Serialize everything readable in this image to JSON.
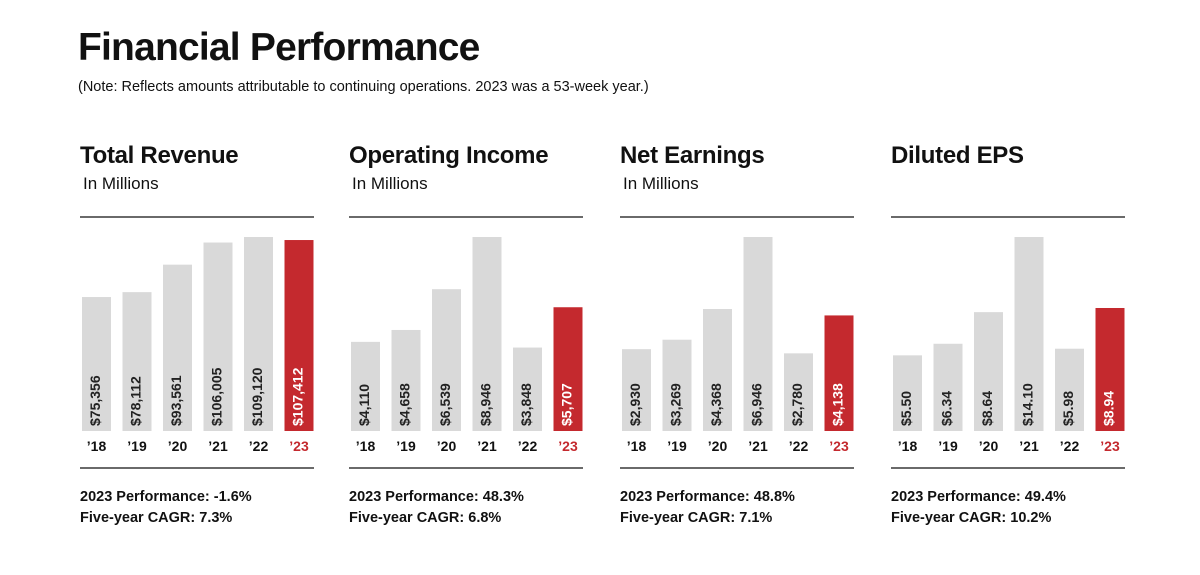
{
  "header": {
    "title": "Financial Performance",
    "note": "(Note: Reflects amounts attributable to continuing operations. 2023 was a 53-week year.)"
  },
  "colors": {
    "bar": "#d9d9d9",
    "highlight": "#c4292e",
    "text": "#111111",
    "label_light": "#222222"
  },
  "chart_data": [
    {
      "type": "bar",
      "title": "Total Revenue",
      "subtitle": "In Millions",
      "categories": [
        "’18",
        "’19",
        "’20",
        "’21",
        "’22",
        "’23"
      ],
      "values": [
        75356,
        78112,
        93561,
        106005,
        109120,
        107412
      ],
      "labels": [
        "$75,356",
        "$78,112",
        "$93,561",
        "$106,005",
        "$109,120",
        "$107,412"
      ],
      "highlight_index": 5,
      "ylim": [
        0,
        109120
      ],
      "performance": "2023 Performance: -1.6%",
      "cagr": "Five-year CAGR: 7.3%"
    },
    {
      "type": "bar",
      "title": "Operating Income",
      "subtitle": "In Millions",
      "categories": [
        "’18",
        "’19",
        "’20",
        "’21",
        "’22",
        "’23"
      ],
      "values": [
        4110,
        4658,
        6539,
        8946,
        3848,
        5707
      ],
      "labels": [
        "$4,110",
        "$4,658",
        "$6,539",
        "$8,946",
        "$3,848",
        "$5,707"
      ],
      "highlight_index": 5,
      "ylim": [
        0,
        8946
      ],
      "performance": "2023 Performance: 48.3%",
      "cagr": "Five-year CAGR: 6.8%"
    },
    {
      "type": "bar",
      "title": "Net Earnings",
      "subtitle": "In Millions",
      "categories": [
        "’18",
        "’19",
        "’20",
        "’21",
        "’22",
        "’23"
      ],
      "values": [
        2930,
        3269,
        4368,
        6946,
        2780,
        4138
      ],
      "labels": [
        "$2,930",
        "$3,269",
        "$4,368",
        "$6,946",
        "$2,780",
        "$4,138"
      ],
      "highlight_index": 5,
      "ylim": [
        0,
        6946
      ],
      "performance": "2023 Performance: 48.8%",
      "cagr": "Five-year CAGR: 7.1%"
    },
    {
      "type": "bar",
      "title": "Diluted EPS",
      "subtitle": "",
      "categories": [
        "’18",
        "’19",
        "’20",
        "’21",
        "’22",
        "’23"
      ],
      "values": [
        5.5,
        6.34,
        8.64,
        14.1,
        5.98,
        8.94
      ],
      "labels": [
        "$5.50",
        "$6.34",
        "$8.64",
        "$14.10",
        "$5.98",
        "$8.94"
      ],
      "highlight_index": 5,
      "ylim": [
        0,
        14.1
      ],
      "performance": "2023 Performance: 49.4%",
      "cagr": "Five-year CAGR: 10.2%"
    }
  ]
}
